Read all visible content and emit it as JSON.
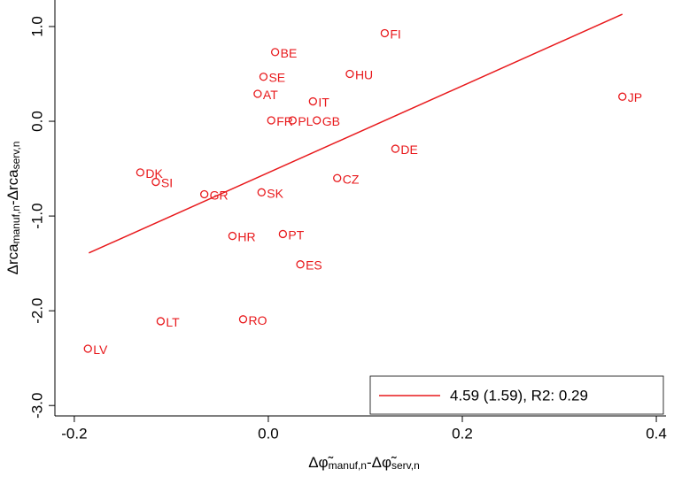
{
  "chart_data": {
    "type": "scatter",
    "x_label_parts": [
      "Δφ̃",
      "manuf,n",
      "-Δφ̃",
      "serv,n"
    ],
    "y_label_parts": [
      "Δrca",
      "manuf,n",
      "-Δrca",
      "serv,n"
    ],
    "xlim": [
      -0.22,
      0.41
    ],
    "ylim": [
      -3.11,
      1.28
    ],
    "xticks": [
      -0.2,
      {
        "value": 0,
        "label": "0.0"
      },
      0.2,
      0.4
    ],
    "yticks": [
      {
        "value": -3,
        "label": "-3.0"
      },
      {
        "value": -2,
        "label": "-2.0"
      },
      {
        "value": -1,
        "label": "-1.0"
      },
      {
        "value": 0,
        "label": "0.0"
      },
      {
        "value": 1,
        "label": "1.0"
      }
    ],
    "points": {
      "color": "#e8191c",
      "labels": [
        "FI",
        "BE",
        "SE",
        "HU",
        "AT",
        "IT",
        "JP",
        "FR",
        "PL",
        "GB",
        "DE",
        "DK",
        "SI",
        "GR",
        "SK",
        "CZ",
        "HR",
        "PT",
        "ES",
        "LT",
        "RO",
        "LV"
      ],
      "x": [
        0.12,
        0.007,
        -0.005,
        0.084,
        -0.011,
        0.046,
        0.365,
        0.003,
        0.025,
        0.05,
        0.131,
        -0.132,
        -0.116,
        -0.066,
        -0.007,
        0.071,
        -0.037,
        0.015,
        0.033,
        -0.111,
        -0.026,
        -0.186
      ],
      "y": [
        0.93,
        0.73,
        0.47,
        0.5,
        0.29,
        0.21,
        0.26,
        0.01,
        0.01,
        0.01,
        -0.29,
        -0.54,
        -0.64,
        -0.77,
        -0.75,
        -0.6,
        -1.21,
        -1.19,
        -1.51,
        -2.11,
        -2.09,
        -2.4
      ]
    },
    "fit": {
      "name": "4.59 (1.59), R2: 0.29",
      "color": "#e8191c",
      "x": [
        -0.185,
        0.365
      ],
      "y": [
        -1.39,
        1.13
      ]
    },
    "legend": "lower right"
  }
}
